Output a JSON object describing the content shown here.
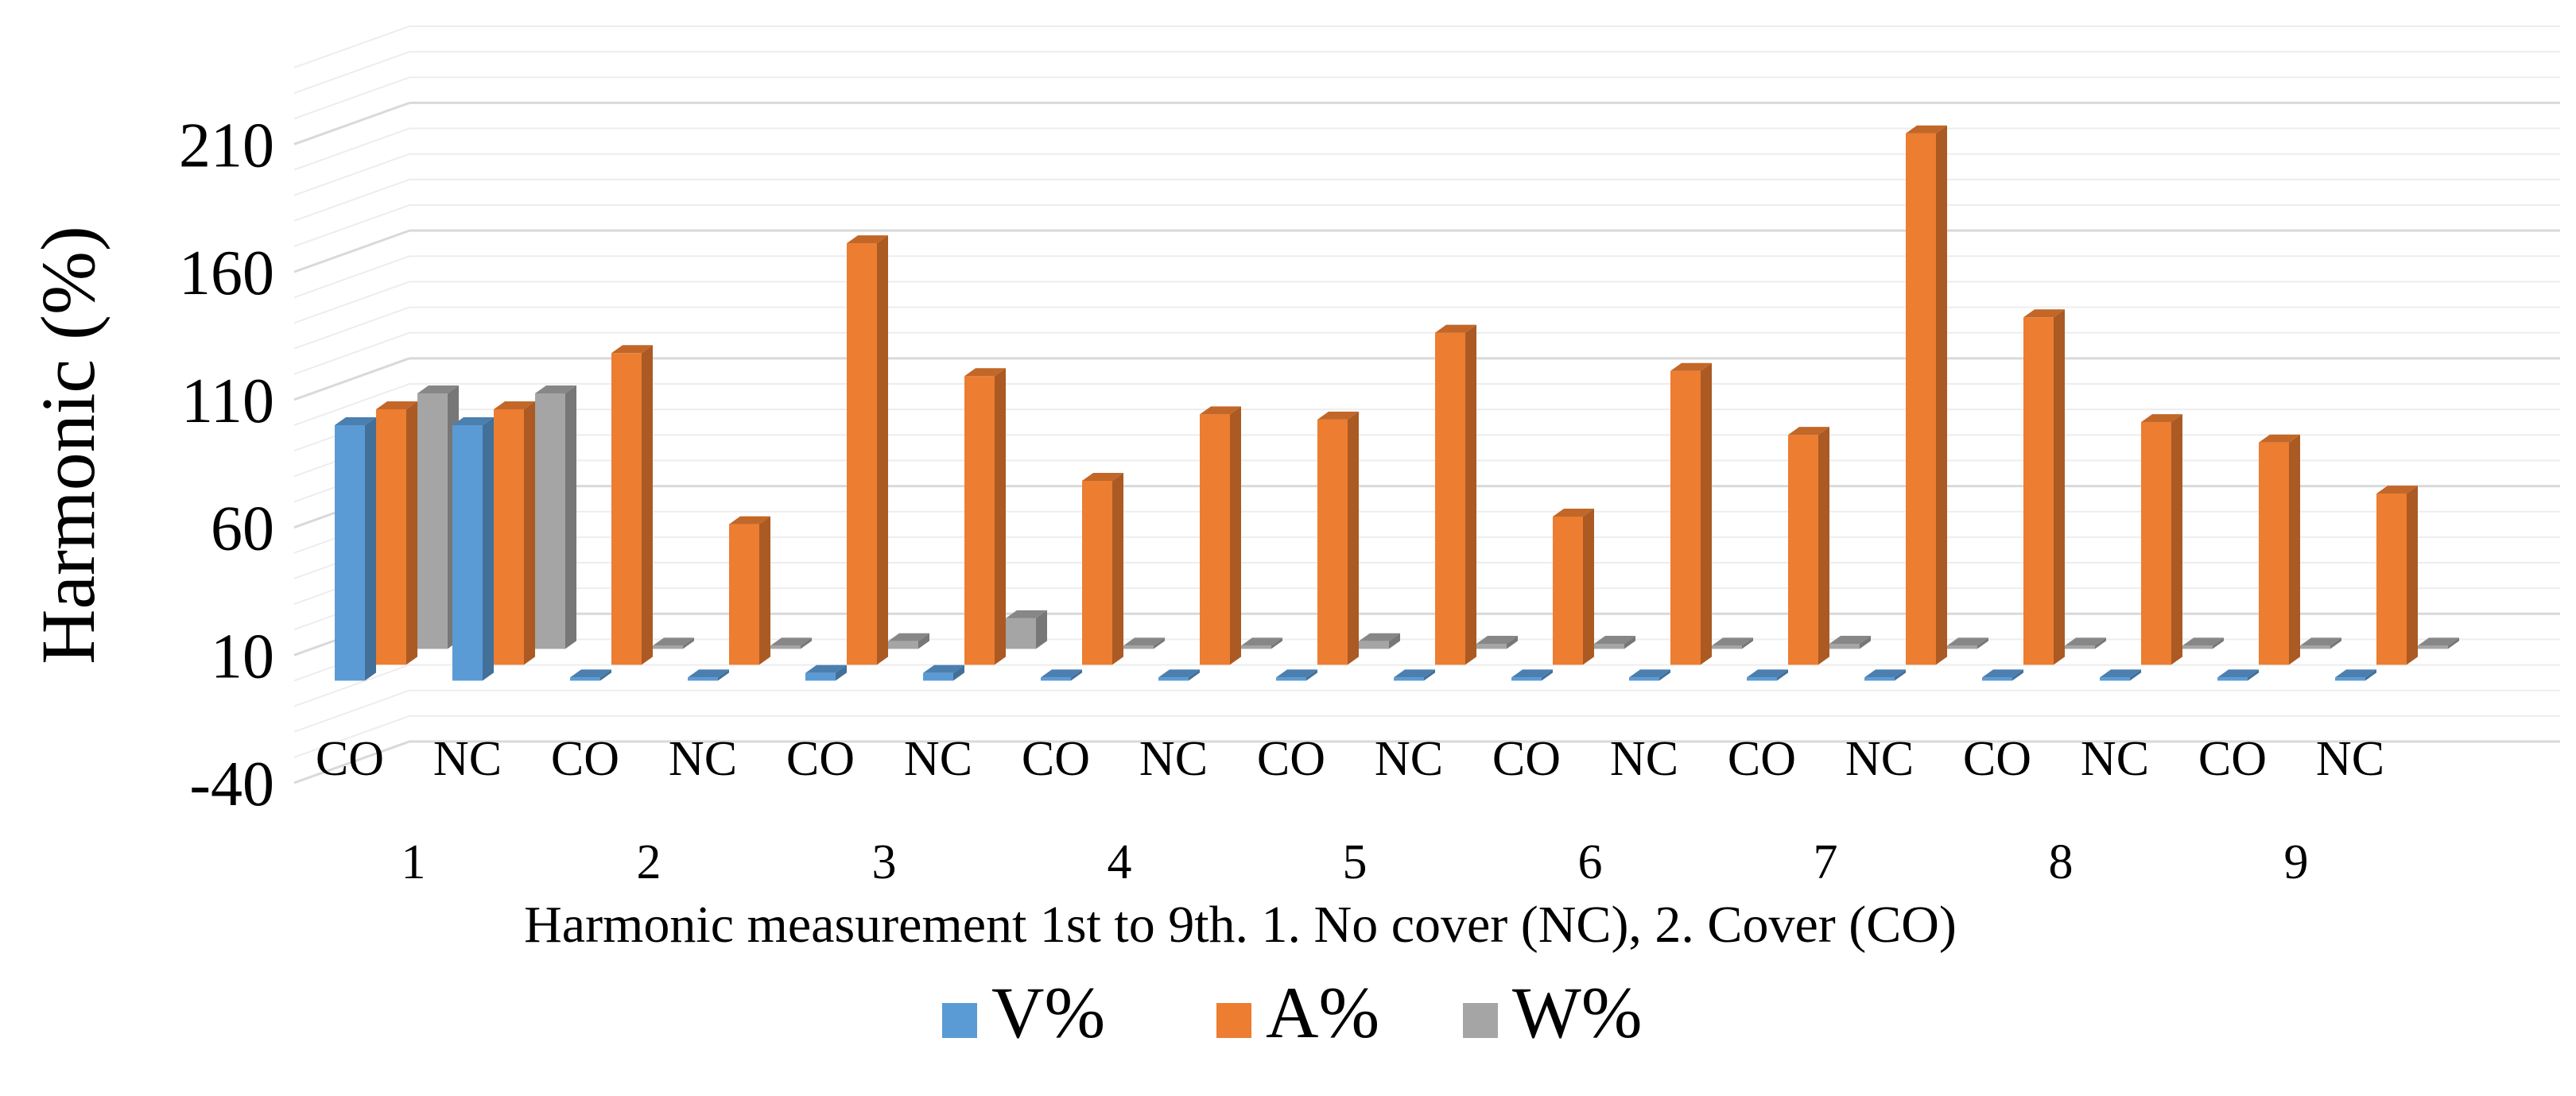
{
  "chart_data": {
    "type": "bar",
    "title": "",
    "ylabel": "Harmonic (%)",
    "xlabel": "Harmonic measurement 1st to 9th. 1. No cover (NC), 2. Cover (CO)",
    "ylim": [
      -40,
      240
    ],
    "yticks": [
      -40,
      10,
      60,
      110,
      160,
      210
    ],
    "grid": true,
    "legend_position": "bottom",
    "categories": [
      "CO",
      "NC",
      "CO",
      "NC",
      "CO",
      "NC",
      "CO",
      "NC",
      "CO",
      "NC",
      "CO",
      "NC",
      "CO",
      "NC",
      "CO",
      "NC",
      "CO",
      "NC"
    ],
    "groups": [
      "1",
      "2",
      "3",
      "4",
      "5",
      "6",
      "7",
      "8",
      "9"
    ],
    "series": [
      {
        "name": "V%",
        "color": "#5b9bd5",
        "values": [
          100,
          100,
          0,
          0,
          3,
          3,
          0,
          0,
          0,
          1,
          0,
          0,
          0,
          0,
          0,
          0,
          0,
          0
        ]
      },
      {
        "name": "A%",
        "color": "#ed7d31",
        "values": [
          100,
          100,
          122,
          55,
          165,
          113,
          72,
          98,
          96,
          130,
          58,
          115,
          90,
          208,
          136,
          95,
          87,
          67
        ]
      },
      {
        "name": "W%",
        "color": "#a5a5a5",
        "values": [
          100,
          100,
          1,
          1,
          3,
          12,
          1,
          1,
          3,
          2,
          2,
          1,
          2,
          1,
          1,
          1,
          1,
          1
        ]
      }
    ]
  }
}
